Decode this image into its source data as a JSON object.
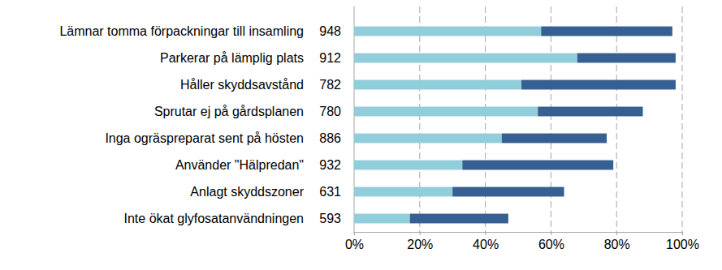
{
  "chart_data": {
    "type": "bar",
    "orientation": "horizontal",
    "stacked": true,
    "grid": true,
    "categories": [
      "Lämnar tomma förpackningar till insamling",
      "Parkerar på lämplig plats",
      "Håller skyddsavstånd",
      "Sprutar ej på gårdsplanen",
      "Inga ogräspreparat sent på hösten",
      "Använder \"Hälpredan\"",
      "Anlagt skyddszoner",
      "Inte ökat glyfosatanvändningen"
    ],
    "counts": [
      948,
      912,
      782,
      780,
      886,
      932,
      631,
      593
    ],
    "series": [
      {
        "color": "#92cddc",
        "values": [
          57,
          68,
          51,
          56,
          45,
          33,
          30,
          17
        ]
      },
      {
        "color": "#366092",
        "values": [
          40,
          30,
          47,
          32,
          32,
          46,
          34,
          30
        ]
      }
    ],
    "xlim": [
      0,
      100
    ],
    "xticks": [
      {
        "value": 0,
        "label": "0%"
      },
      {
        "value": 20,
        "label": "20%"
      },
      {
        "value": 40,
        "label": "40%"
      },
      {
        "value": 60,
        "label": "60%"
      },
      {
        "value": 80,
        "label": "80%"
      },
      {
        "value": 100,
        "label": "100%"
      }
    ]
  }
}
